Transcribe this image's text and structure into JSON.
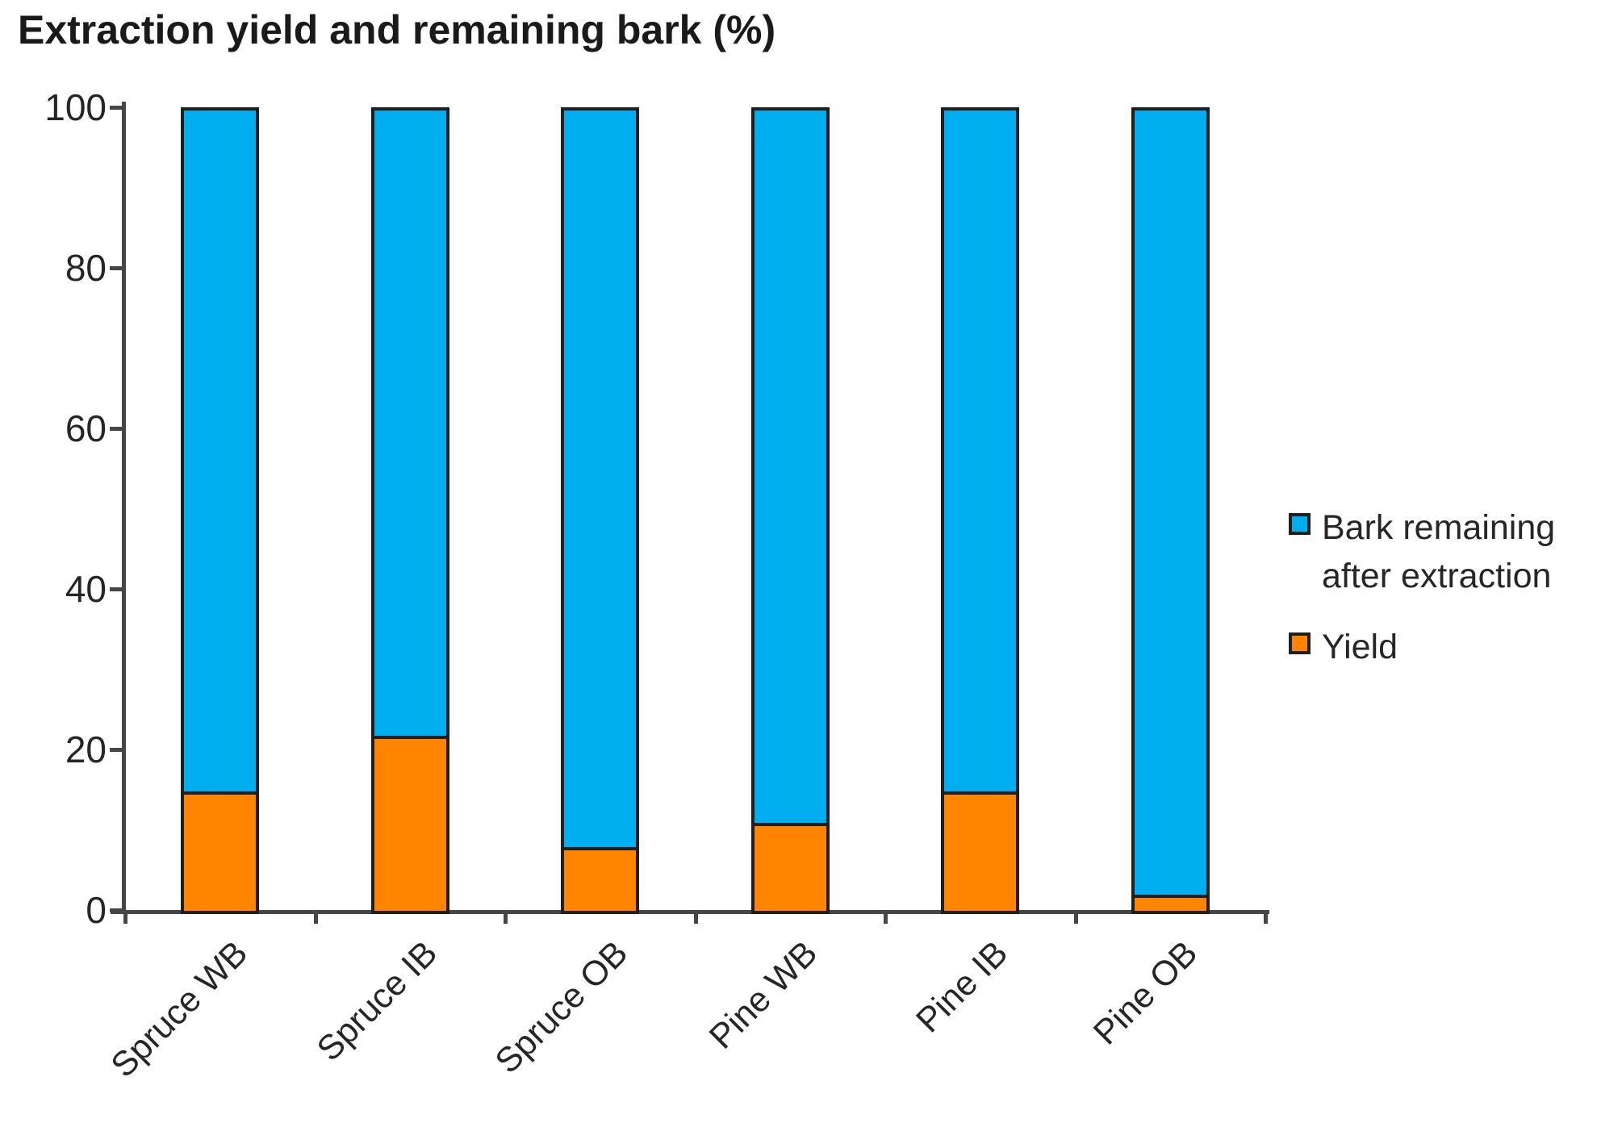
{
  "title": "Extraction yield and remaining bark (%)",
  "chart_data": {
    "type": "bar",
    "stacked": true,
    "title": "Extraction yield and remaining bark (%)",
    "categories": [
      "Spruce WB",
      "Spruce IB",
      "Spruce OB",
      "Pine WB",
      "Pine IB",
      "Pine OB"
    ],
    "series": [
      {
        "name": "Yield",
        "color": "#FF8400",
        "values": [
          15,
          22,
          8,
          11,
          15,
          2
        ]
      },
      {
        "name": "Bark remaining after extraction",
        "color": "#00AEEF",
        "values": [
          85,
          78,
          92,
          89,
          85,
          98
        ]
      }
    ],
    "xlabel": "",
    "ylabel": "",
    "ylim": [
      0,
      100
    ],
    "yticks": [
      0,
      20,
      40,
      60,
      80,
      100
    ],
    "grid": false,
    "legend_position": "right",
    "axis_color": "#464646",
    "bar_border_color": "#1f1f1f"
  },
  "legend": {
    "items": [
      {
        "label": "Bark remaining after extraction",
        "color": "#00AEEF",
        "swatch": "blue-square"
      },
      {
        "label": "Yield",
        "color": "#FF8400",
        "swatch": "orange-square"
      }
    ]
  }
}
